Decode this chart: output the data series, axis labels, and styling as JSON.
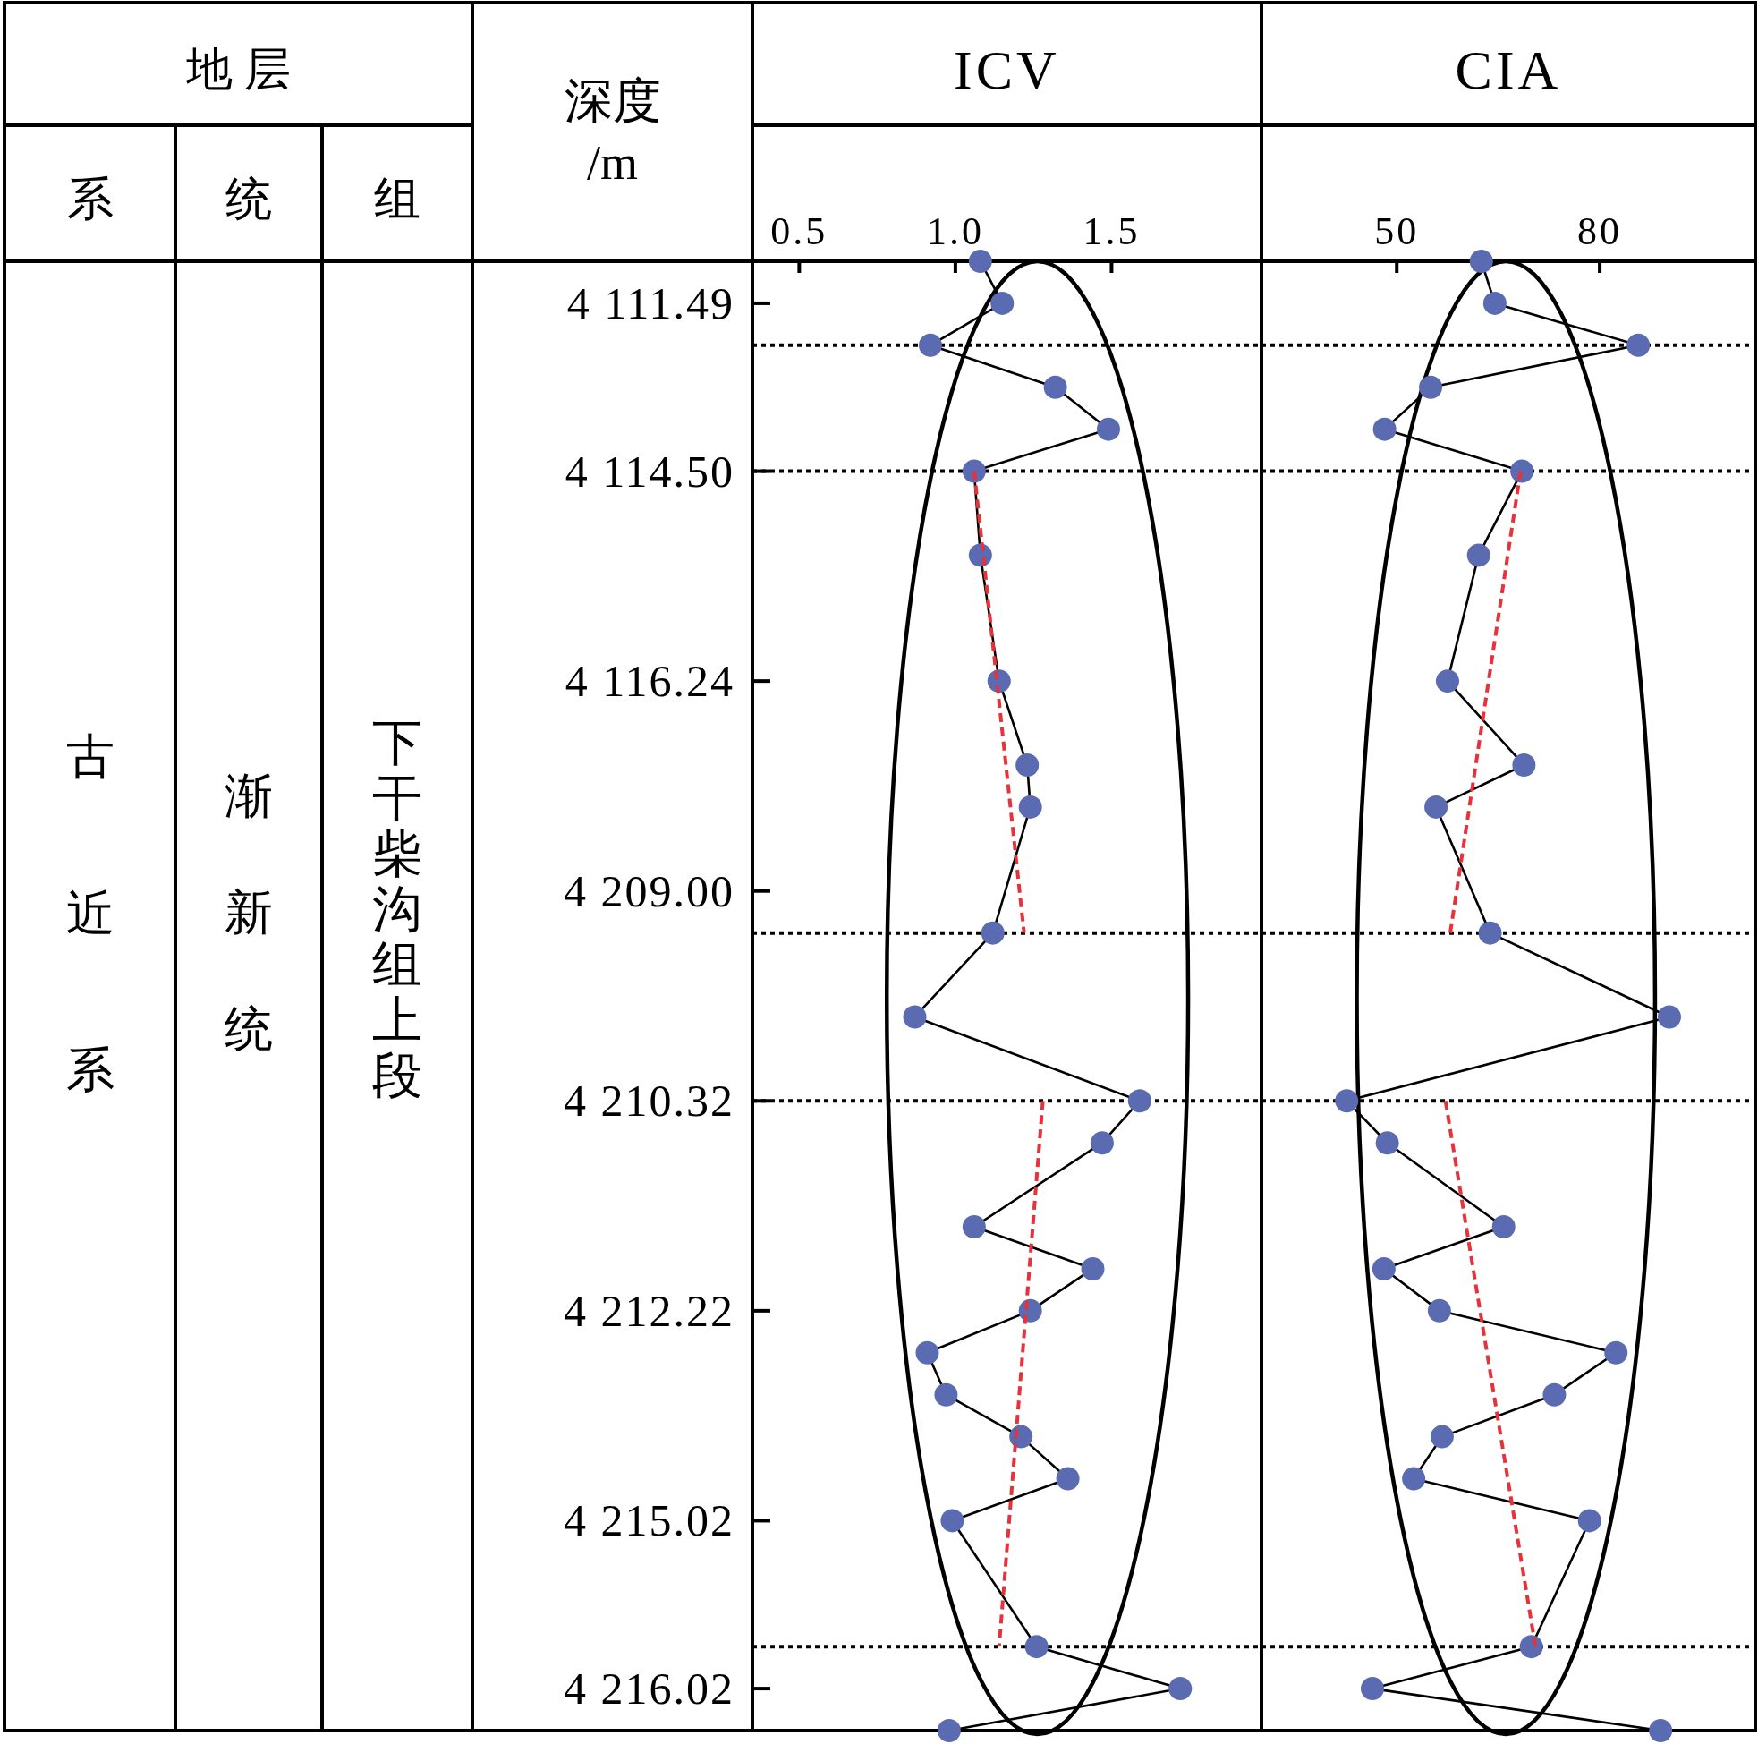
{
  "chart_data": [
    {
      "type": "line",
      "orientation": "horizontal",
      "title": "ICV",
      "ylabel": "深度\n/m",
      "annotations": [
        "地 层",
        "系",
        "统",
        "组",
        "古近系",
        "渐新统",
        "下干柴沟组上段"
      ],
      "categories": [
        null,
        "4 111.49",
        null,
        null,
        null,
        "4 114.50",
        null,
        null,
        null,
        null,
        "4 116.24",
        null,
        null,
        null,
        null,
        "4 209.00",
        null,
        null,
        null,
        null,
        "4 210.32",
        null,
        null,
        null,
        null,
        "4 212.22",
        null,
        null,
        null,
        null,
        "4 215.02",
        null,
        null,
        null,
        "4 216.02",
        null
      ],
      "xlim": [
        0.35,
        1.98
      ],
      "xticks": [
        0.5,
        {
          "value": 1,
          "label": "1.0"
        },
        1.5
      ],
      "grid": "y",
      "marker": "circle",
      "line_style": "solid",
      "series": [
        {
          "color": "#000000",
          "colors": [
            "#5a6bb2",
            "#5a6bb2",
            "#5a6bb2",
            "#5a6bb2",
            "#5a6bb2",
            "#5a6bb2",
            null,
            "#5a6bb2",
            null,
            null,
            "#5a6bb2",
            null,
            "#5a6bb2",
            "#5a6bb2",
            null,
            null,
            "#5a6bb2",
            null,
            "#5a6bb2",
            null,
            "#5a6bb2",
            "#5a6bb2",
            null,
            "#5a6bb2",
            "#5a6bb2",
            "#5a6bb2",
            "#5a6bb2",
            "#5a6bb2",
            "#5a6bb2",
            "#5a6bb2",
            "#5a6bb2",
            null,
            null,
            "#5a6bb2",
            "#5a6bb2",
            "#5a6bb2"
          ],
          "values": [
            1.08,
            1.15,
            0.92,
            1.32,
            1.49,
            1.06,
            null,
            1.08,
            null,
            null,
            1.14,
            null,
            1.23,
            1.24,
            null,
            null,
            1.12,
            null,
            0.87,
            null,
            1.59,
            1.47,
            null,
            1.06,
            1.44,
            1.24,
            0.91,
            0.97,
            1.21,
            1.36,
            0.99,
            null,
            null,
            1.26,
            1.72,
            0.98
          ]
        },
        {
          "color": "#e5333b",
          "line_style": "dashed",
          "marker": "none",
          "values": [
            null,
            null,
            null,
            null,
            null,
            1.06,
            null,
            null,
            null,
            null,
            null,
            null,
            null,
            null,
            null,
            null,
            1.22,
            null,
            null,
            null,
            null,
            null,
            null,
            null,
            null,
            null,
            null,
            null,
            null,
            null,
            null,
            null,
            null,
            null,
            null,
            null
          ]
        },
        {
          "color": "#e5333b",
          "line_style": "dashed",
          "marker": "none",
          "values": [
            null,
            null,
            null,
            null,
            null,
            null,
            null,
            null,
            null,
            null,
            null,
            null,
            null,
            null,
            null,
            null,
            null,
            null,
            null,
            null,
            1.28,
            null,
            null,
            null,
            null,
            null,
            null,
            null,
            null,
            null,
            null,
            null,
            null,
            1.14,
            null,
            null
          ]
        }
      ]
    },
    {
      "type": "line",
      "orientation": "horizontal",
      "title": "CIA",
      "categories": [
        null,
        null,
        null,
        null,
        null,
        null,
        null,
        null,
        null,
        null,
        null,
        null,
        null,
        null,
        null,
        null,
        null,
        null,
        null,
        null,
        null,
        null,
        null,
        null,
        null,
        null,
        null,
        null,
        null,
        null,
        null,
        null,
        null,
        null,
        null,
        null
      ],
      "xlim": [
        30,
        103
      ],
      "xticks": [
        50,
        80
      ],
      "grid": "y",
      "marker": "circle",
      "line_style": "solid",
      "series": [
        {
          "color": "#000000",
          "colors": [
            "#5a6bb2",
            "#5a6bb2",
            "#5a6bb2",
            "#5a6bb2",
            "#5a6bb2",
            "#5a6bb2",
            null,
            "#5a6bb2",
            null,
            null,
            "#5a6bb2",
            null,
            "#5a6bb2",
            "#5a6bb2",
            null,
            null,
            "#5a6bb2",
            null,
            "#5a6bb2",
            null,
            "#5a6bb2",
            "#5a6bb2",
            null,
            "#5a6bb2",
            "#5a6bb2",
            "#5a6bb2",
            "#5a6bb2",
            "#5a6bb2",
            "#5a6bb2",
            "#5a6bb2",
            "#5a6bb2",
            null,
            null,
            "#5a6bb2",
            "#5a6bb2",
            "#5a6bb2"
          ],
          "values": [
            62.5,
            64.5,
            85.7,
            55.0,
            48.2,
            68.5,
            null,
            62.1,
            null,
            null,
            57.5,
            null,
            68.8,
            55.8,
            null,
            null,
            63.8,
            null,
            90.3,
            null,
            42.6,
            48.6,
            null,
            65.8,
            48.1,
            56.3,
            82.4,
            73.3,
            56.7,
            52.5,
            78.5,
            null,
            null,
            69.9,
            46.4,
            89.0
          ]
        },
        {
          "color": "#e5333b",
          "line_style": "dashed",
          "marker": "none",
          "values": [
            null,
            null,
            null,
            null,
            null,
            68.3,
            null,
            null,
            null,
            null,
            null,
            null,
            null,
            null,
            null,
            null,
            57.9,
            null,
            null,
            null,
            null,
            null,
            null,
            null,
            null,
            null,
            null,
            null,
            null,
            null,
            null,
            null,
            null,
            null,
            null,
            null
          ]
        },
        {
          "color": "#e5333b",
          "line_style": "dashed",
          "marker": "none",
          "values": [
            null,
            null,
            null,
            null,
            null,
            null,
            null,
            null,
            null,
            null,
            null,
            null,
            null,
            null,
            null,
            null,
            null,
            null,
            null,
            null,
            57.2,
            null,
            null,
            null,
            null,
            null,
            null,
            null,
            null,
            null,
            null,
            null,
            null,
            70.5,
            null,
            null
          ]
        }
      ]
    }
  ]
}
